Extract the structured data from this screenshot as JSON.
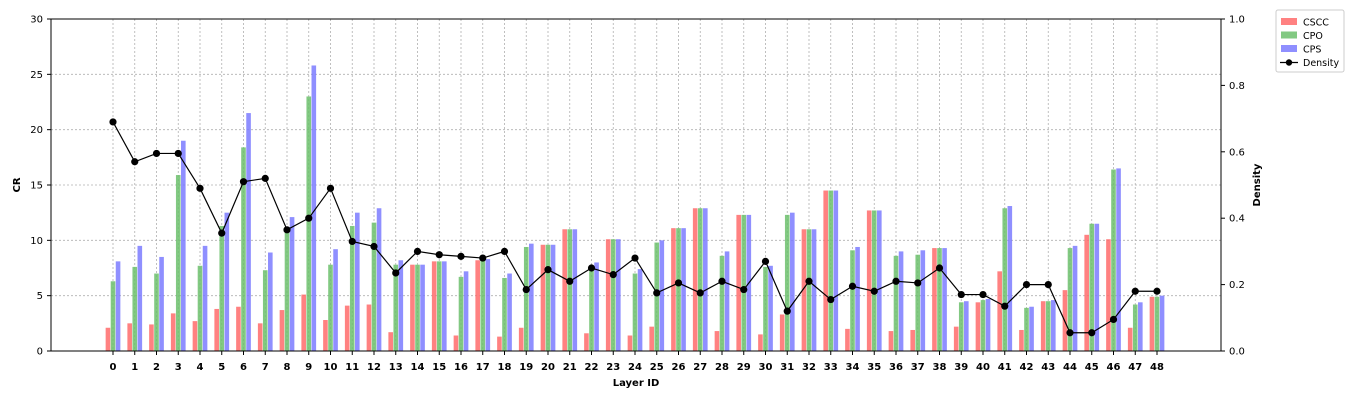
{
  "chart_data": {
    "type": "bar",
    "xlabel": "Layer ID",
    "ylabel": "CR",
    "y2label": "Density",
    "ylim": [
      0,
      30
    ],
    "y2lim": [
      0,
      1
    ],
    "yticks": [
      0,
      5,
      10,
      15,
      20,
      25,
      30
    ],
    "y2ticks": [
      "0.0",
      "0.2",
      "0.4",
      "0.6",
      "0.8",
      "1.0"
    ],
    "grid": true,
    "legend_position": "outside top-right",
    "categories": [
      "0",
      "1",
      "2",
      "3",
      "4",
      "5",
      "6",
      "7",
      "8",
      "9",
      "10",
      "11",
      "12",
      "13",
      "14",
      "15",
      "16",
      "17",
      "18",
      "19",
      "20",
      "21",
      "22",
      "23",
      "24",
      "25",
      "26",
      "27",
      "28",
      "29",
      "30",
      "31",
      "32",
      "33",
      "34",
      "35",
      "36",
      "37",
      "38",
      "39",
      "40",
      "41",
      "42",
      "43",
      "44",
      "45",
      "46",
      "47",
      "48"
    ],
    "series": [
      {
        "name": "CSCC",
        "kind": "bar",
        "color": "#ff6b6b",
        "values": [
          2.1,
          2.5,
          2.4,
          3.4,
          2.7,
          3.8,
          4.0,
          2.5,
          3.7,
          5.1,
          2.8,
          4.1,
          4.2,
          1.7,
          7.8,
          8.1,
          1.4,
          8.2,
          1.3,
          2.1,
          9.6,
          11.0,
          1.6,
          10.1,
          1.4,
          2.2,
          11.1,
          12.9,
          1.8,
          12.3,
          1.5,
          3.3,
          11.0,
          14.5,
          2.0,
          12.7,
          1.8,
          1.9,
          9.3,
          2.2,
          4.4,
          7.2,
          1.9,
          4.5,
          5.5,
          10.5,
          10.1,
          2.1,
          4.9
        ]
      },
      {
        "name": "CPO",
        "kind": "bar",
        "color": "#6cbf6c",
        "values": [
          6.3,
          7.6,
          7.0,
          15.9,
          7.7,
          11.3,
          18.4,
          7.3,
          10.9,
          23.0,
          7.8,
          11.3,
          11.6,
          7.8,
          7.8,
          8.1,
          6.7,
          8.2,
          6.6,
          9.4,
          9.6,
          11.0,
          7.7,
          10.1,
          7.0,
          9.8,
          11.1,
          12.9,
          8.6,
          12.3,
          7.6,
          12.3,
          11.0,
          14.5,
          9.1,
          12.7,
          8.6,
          8.7,
          9.3,
          4.4,
          4.6,
          12.9,
          3.9,
          4.5,
          9.3,
          11.5,
          16.4,
          4.2,
          4.9
        ]
      },
      {
        "name": "CPS",
        "kind": "bar",
        "color": "#7b7bff",
        "values": [
          8.1,
          9.5,
          8.5,
          19.0,
          9.5,
          12.5,
          21.5,
          8.9,
          12.1,
          25.8,
          9.2,
          12.5,
          12.9,
          8.2,
          7.8,
          8.1,
          7.2,
          8.3,
          7.0,
          9.7,
          9.6,
          11.0,
          8.0,
          10.1,
          7.4,
          10.0,
          11.1,
          12.9,
          9.0,
          12.3,
          7.7,
          12.5,
          11.0,
          14.5,
          9.4,
          12.7,
          9.0,
          9.1,
          9.3,
          4.5,
          4.7,
          13.1,
          4.0,
          4.6,
          9.5,
          11.5,
          16.5,
          4.4,
          5.0
        ]
      },
      {
        "name": "Density",
        "kind": "line",
        "axis": "right",
        "color": "#000000",
        "values": [
          0.69,
          0.57,
          0.595,
          0.595,
          0.49,
          0.355,
          0.51,
          0.52,
          0.365,
          0.4,
          0.49,
          0.33,
          0.315,
          0.235,
          0.3,
          0.29,
          0.285,
          0.28,
          0.3,
          0.185,
          0.245,
          0.21,
          0.25,
          0.23,
          0.28,
          0.175,
          0.205,
          0.175,
          0.21,
          0.185,
          0.27,
          0.12,
          0.21,
          0.155,
          0.195,
          0.18,
          0.21,
          0.205,
          0.25,
          0.17,
          0.17,
          0.135,
          0.2,
          0.2,
          0.055,
          0.055,
          0.095,
          0.18,
          0.18
        ]
      }
    ]
  }
}
